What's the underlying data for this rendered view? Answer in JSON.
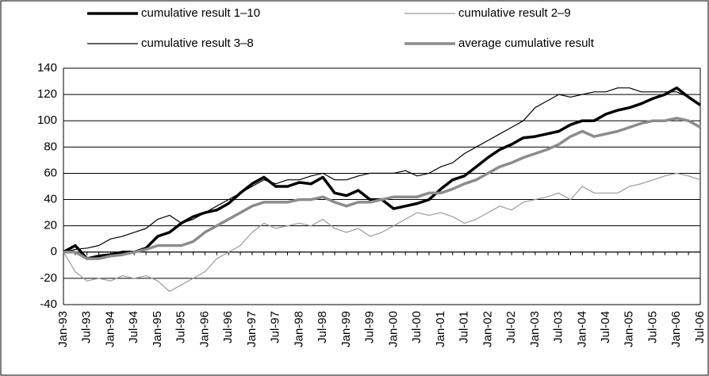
{
  "chart_data": {
    "type": "line",
    "categories": [
      "Jan-93",
      null,
      "Jul-93",
      null,
      "Jan-94",
      null,
      "Jul-94",
      null,
      "Jan-95",
      null,
      "Jul-95",
      null,
      "Jan-96",
      null,
      "Jul-96",
      null,
      "Jan-97",
      null,
      "Jul-97",
      null,
      "Jan-98",
      null,
      "Jul-98",
      null,
      "Jan-99",
      null,
      "Jul-99",
      null,
      "Jan-00",
      null,
      "Jul-00",
      null,
      "Jan-01",
      null,
      "Jul-01",
      null,
      "Jan-02",
      null,
      "Jul-02",
      null,
      "Jan-03",
      null,
      "Jul-03",
      null,
      "Jan-04",
      null,
      "Jul-04",
      null,
      "Jan-05",
      null,
      "Jul-05",
      null,
      "Jan-06",
      null,
      "Jul-06"
    ],
    "series": [
      {
        "name": "cumulative result 1–10",
        "color": "#000000",
        "width": 3.5,
        "values": [
          0,
          5,
          -5,
          -3,
          -2,
          0,
          0,
          3,
          12,
          15,
          22,
          27,
          30,
          32,
          37,
          45,
          52,
          57,
          50,
          50,
          53,
          52,
          57,
          45,
          43,
          47,
          40,
          40,
          33,
          35,
          37,
          40,
          48,
          55,
          58,
          65,
          72,
          78,
          82,
          87,
          88,
          90,
          92,
          97,
          100,
          100,
          105,
          108,
          110,
          113,
          117,
          120,
          125,
          118,
          112
        ]
      },
      {
        "name": "cumulative result 2–9",
        "color": "#9a9a9a",
        "width": 1.2,
        "values": [
          0,
          -15,
          -22,
          -20,
          -22,
          -18,
          -20,
          -18,
          -22,
          -30,
          -25,
          -20,
          -15,
          -5,
          0,
          5,
          15,
          22,
          18,
          20,
          22,
          20,
          25,
          18,
          15,
          18,
          12,
          15,
          20,
          25,
          30,
          28,
          30,
          27,
          22,
          25,
          30,
          35,
          32,
          38,
          40,
          42,
          45,
          40,
          50,
          45,
          45,
          45,
          50,
          52,
          55,
          58,
          60,
          58,
          55
        ]
      },
      {
        "name": "cumulative result 3–8",
        "color": "#000000",
        "width": 1.2,
        "values": [
          0,
          2,
          3,
          5,
          10,
          12,
          15,
          18,
          25,
          28,
          22,
          25,
          30,
          35,
          40,
          45,
          50,
          55,
          52,
          55,
          55,
          58,
          60,
          55,
          55,
          58,
          60,
          60,
          60,
          62,
          58,
          60,
          65,
          68,
          75,
          80,
          85,
          90,
          95,
          100,
          110,
          115,
          120,
          118,
          120,
          122,
          122,
          125,
          125,
          122,
          122,
          122,
          122,
          118,
          112
        ]
      },
      {
        "name": "average cumulative result",
        "color": "#8c8c8c",
        "width": 3.5,
        "values": [
          0,
          0,
          -5,
          -5,
          -3,
          -2,
          0,
          2,
          5,
          5,
          5,
          8,
          15,
          20,
          25,
          30,
          35,
          38,
          38,
          38,
          40,
          40,
          42,
          38,
          35,
          38,
          38,
          40,
          42,
          42,
          42,
          45,
          45,
          48,
          52,
          55,
          60,
          65,
          68,
          72,
          75,
          78,
          82,
          88,
          92,
          88,
          90,
          92,
          95,
          98,
          100,
          100,
          102,
          100,
          95
        ]
      }
    ],
    "ylim": [
      -40,
      140
    ],
    "yticks": [
      -40,
      -20,
      0,
      20,
      40,
      60,
      80,
      100,
      120,
      140
    ],
    "grid": true
  }
}
